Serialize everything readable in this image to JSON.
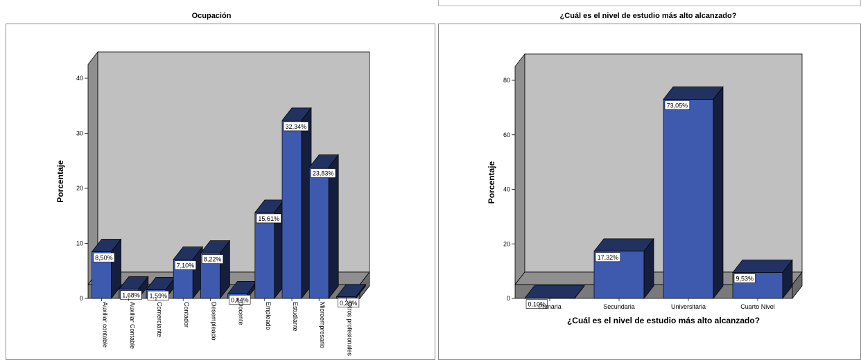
{
  "charts": {
    "left": {
      "title": "Ocupación",
      "ylabel": "Porcentaje"
    },
    "right": {
      "title": "¿Cuál es el nivel de estudio más alto alcanzado?",
      "ylabel": "Porcentaje",
      "xlabel": "¿Cuál es el nivel de estudio más alto alcanzado?"
    }
  },
  "chart_data": [
    {
      "type": "bar",
      "title": "Ocupación",
      "xlabel": "",
      "ylabel": "Porcentaje",
      "ylim": [
        0,
        40
      ],
      "yticks": [
        0,
        10,
        20,
        30,
        40
      ],
      "categories": [
        "Auxiliar contable",
        "Auxiliar Contable",
        "Comerciante",
        "Contador",
        "Desempleado",
        "Docente",
        "Empleado",
        "Estudiante",
        "Microempresario",
        "Otros profesionales"
      ],
      "values": [
        8.5,
        1.68,
        1.59,
        7.1,
        8.22,
        0.84,
        15.61,
        32.34,
        23.83,
        0.28
      ],
      "data_labels": [
        "8,50%",
        "1,68%",
        "1,59%",
        "7,10%",
        "8,22%",
        "0,84%",
        "15,61%",
        "32,34%",
        "23,83%",
        "0,28%"
      ],
      "bar_color": "#3d5aaf",
      "grid": false
    },
    {
      "type": "bar",
      "title": "¿Cuál es el nivel de estudio más alto alcanzado?",
      "xlabel": "¿Cuál es el nivel de estudio más alto alcanzado?",
      "ylabel": "Porcentaje",
      "ylim": [
        0,
        80
      ],
      "yticks": [
        0,
        20,
        40,
        60,
        80
      ],
      "categories": [
        "Primaria",
        "Secundaria",
        "Universitaria",
        "Cuarto Nivel"
      ],
      "values": [
        0.1,
        17.32,
        73.05,
        9.53
      ],
      "data_labels": [
        "0,10%",
        "17,32%",
        "73,05%",
        "9,53%"
      ],
      "bar_color": "#3d5aaf",
      "grid": false
    }
  ]
}
